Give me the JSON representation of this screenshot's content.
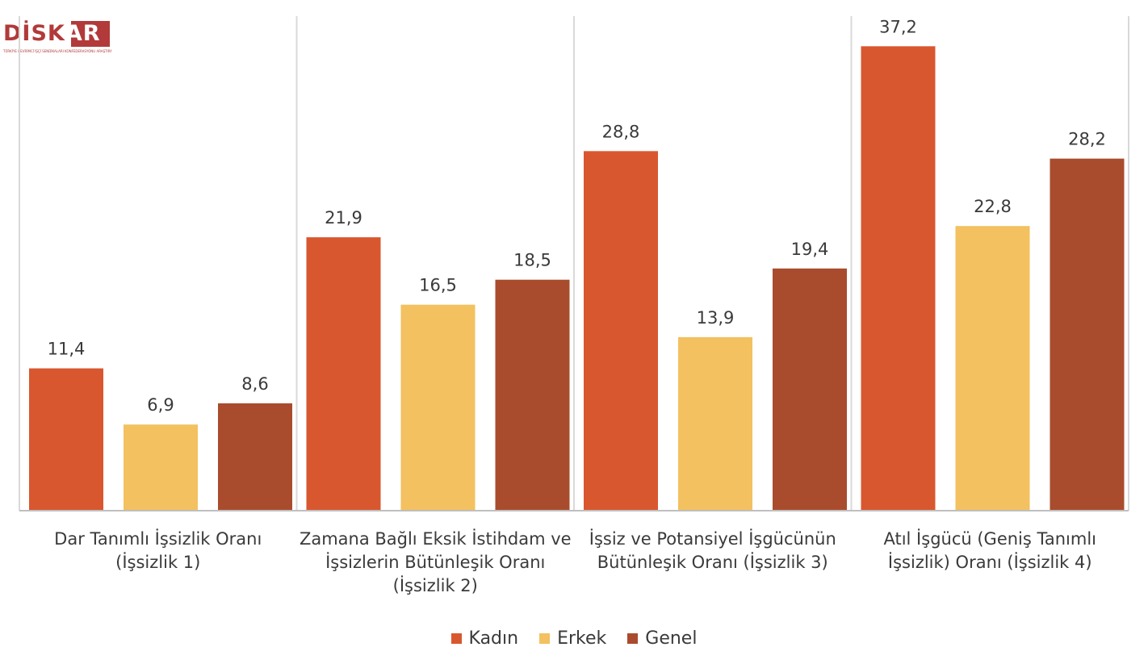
{
  "logo": {
    "text_part1": "DİSK",
    "text_part2": "AR",
    "subtitle": "TÜRKİYE DEVRİMCİ İŞÇİ SENDİKALARI KONFEDERASYONU ARAŞTIRMA MERKEZİ"
  },
  "colors": {
    "kadin": "#d9572f",
    "erkek": "#f3c15f",
    "genel": "#a94c2d",
    "grid": "#d9d9d9",
    "axis": "#bfbfbf",
    "text": "#3a3a3a"
  },
  "chart_data": {
    "type": "bar",
    "categories": [
      "Dar Tanımlı İşsizlik Oranı (İşsizlik 1)",
      "Zamana Bağlı Eksik İstihdam ve İşsizlerin Bütünleşik Oranı (İşsizlik 2)",
      "İşsiz ve Potansiyel İşgücünün Bütünleşik Oranı (İşsizlik 3)",
      "Atıl İşgücü (Geniş Tanımlı İşsizlik) Oranı (İşsizlik 4)"
    ],
    "category_lines": [
      [
        "Dar Tanımlı İşsizlik Oranı",
        "(İşsizlik 1)"
      ],
      [
        "Zamana Bağlı Eksik İstihdam ve",
        "İşsizlerin Bütünleşik Oranı",
        "(İşsizlik 2)"
      ],
      [
        "İşsiz ve Potansiyel İşgücünün",
        "Bütünleşik Oranı (İşsizlik 3)"
      ],
      [
        "Atıl İşgücü (Geniş Tanımlı",
        "İşsizlik) Oranı (İşsizlik 4)"
      ]
    ],
    "series": [
      {
        "name": "Kadın",
        "values": [
          11.4,
          21.9,
          28.8,
          37.2
        ],
        "labels": [
          "11,4",
          "21,9",
          "28,8",
          "37,2"
        ]
      },
      {
        "name": "Erkek",
        "values": [
          6.9,
          16.5,
          13.9,
          22.8
        ],
        "labels": [
          "6,9",
          "16,5",
          "13,9",
          "22,8"
        ]
      },
      {
        "name": "Genel",
        "values": [
          8.6,
          18.5,
          19.4,
          28.2
        ],
        "labels": [
          "8,6",
          "18,5",
          "19,4",
          "28,2"
        ]
      }
    ],
    "title": "",
    "xlabel": "",
    "ylabel": "",
    "ylim": [
      0,
      40
    ],
    "grid": false,
    "legend_position": "bottom"
  }
}
